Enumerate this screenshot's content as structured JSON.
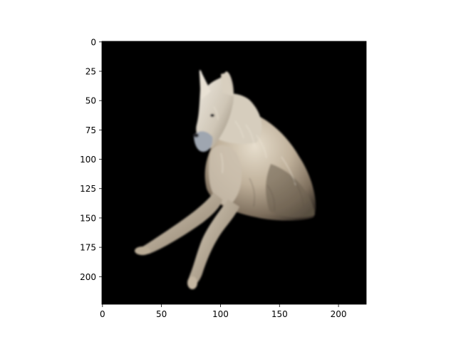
{
  "figure": {
    "image_subject": "white wolf lying on a black background",
    "background_color": "#ffffff",
    "image_background_color": "#000000"
  },
  "axes": {
    "x_ticks": [
      {
        "value": 0,
        "label": "0"
      },
      {
        "value": 50,
        "label": "50"
      },
      {
        "value": 100,
        "label": "100"
      },
      {
        "value": 150,
        "label": "150"
      },
      {
        "value": 200,
        "label": "200"
      }
    ],
    "y_ticks": [
      {
        "value": 0,
        "label": "0"
      },
      {
        "value": 25,
        "label": "25"
      },
      {
        "value": 50,
        "label": "50"
      },
      {
        "value": 75,
        "label": "75"
      },
      {
        "value": 100,
        "label": "100"
      },
      {
        "value": 125,
        "label": "125"
      },
      {
        "value": 150,
        "label": "150"
      },
      {
        "value": 175,
        "label": "175"
      },
      {
        "value": 200,
        "label": "200"
      }
    ],
    "x_range": [
      -0.5,
      223.5
    ],
    "y_range": [
      -0.5,
      223.5
    ],
    "y_inverted": true
  }
}
